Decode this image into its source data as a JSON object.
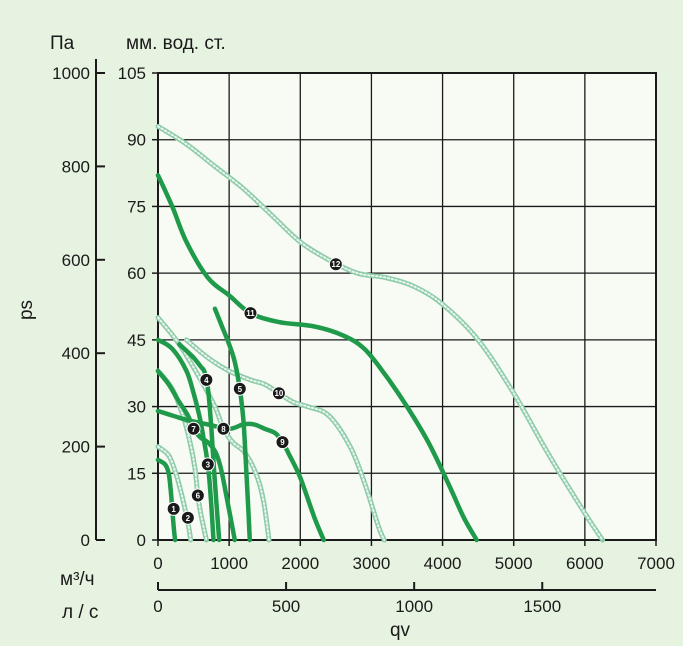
{
  "chart_data": {
    "type": "line",
    "units": {
      "pa": "Па",
      "mm": "мм. вод. ст.",
      "m3h": "м³/ч",
      "ls": "л / с"
    },
    "ylabel": "ps",
    "xlabel": "qv",
    "axes": {
      "pa": {
        "lim": [
          0,
          1000
        ],
        "ticks": [
          "0",
          "200",
          "400",
          "600",
          "800",
          "1000"
        ]
      },
      "mm": {
        "lim": [
          0,
          105
        ],
        "ticks": [
          "0",
          "15",
          "30",
          "45",
          "60",
          "75",
          "90",
          "105"
        ]
      },
      "m3h": {
        "lim": [
          0,
          7000
        ],
        "ticks": [
          "0",
          "1000",
          "2000",
          "3000",
          "4000",
          "5000",
          "6000",
          "7000"
        ]
      },
      "ls": {
        "lim": [
          0,
          1944
        ],
        "ticks": [
          "0",
          "500",
          "1000",
          "1500"
        ]
      }
    },
    "grid": true,
    "colors": {
      "solid": "#1e9a4a",
      "dotted": "#8ecba8",
      "badge": "#1a1a1a",
      "grid": "#1a1a1a"
    },
    "series": [
      {
        "name": "1",
        "style": "solid",
        "label_at": [
          220,
          7
        ],
        "x": [
          0,
          100,
          150,
          180,
          200,
          220,
          240
        ],
        "y": [
          18,
          17,
          15,
          11,
          7,
          3,
          0
        ]
      },
      {
        "name": "2",
        "style": "dotted",
        "label_at": [
          420,
          5
        ],
        "x": [
          0,
          150,
          250,
          320,
          380,
          420,
          460
        ],
        "y": [
          21,
          19,
          15,
          11,
          7,
          4,
          0
        ]
      },
      {
        "name": "3",
        "style": "solid",
        "label_at": [
          700,
          17
        ],
        "x": [
          0,
          200,
          400,
          500,
          580,
          640,
          700,
          740,
          780
        ],
        "y": [
          45,
          43,
          38,
          33,
          28,
          23,
          17,
          10,
          0
        ]
      },
      {
        "name": "4",
        "style": "solid",
        "label_at": [
          680,
          36
        ],
        "x": [
          300,
          500,
          600,
          650,
          680,
          710,
          750,
          800,
          860
        ],
        "y": [
          44,
          41,
          39,
          38,
          36,
          33,
          25,
          13,
          0
        ]
      },
      {
        "name": "5",
        "style": "solid",
        "label_at": [
          1150,
          34
        ],
        "x": [
          800,
          900,
          1000,
          1080,
          1150,
          1200,
          1230,
          1260,
          1290
        ],
        "y": [
          52,
          48,
          44,
          40,
          34,
          27,
          19,
          10,
          0
        ]
      },
      {
        "name": "6",
        "style": "dotted",
        "label_at": [
          560,
          10
        ],
        "x": [
          0,
          200,
          350,
          450,
          520,
          560,
          600,
          640,
          680
        ],
        "y": [
          38,
          34,
          28,
          22,
          16,
          10,
          6,
          3,
          0
        ]
      },
      {
        "name": "7",
        "style": "solid",
        "label_at": [
          500,
          25
        ],
        "x": [
          0,
          150,
          300,
          420,
          500,
          600,
          700,
          800,
          850,
          900,
          960,
          1020,
          1080
        ],
        "y": [
          38,
          35,
          31,
          28,
          25,
          23,
          22,
          20,
          18,
          15,
          10,
          5,
          0
        ]
      },
      {
        "name": "8",
        "style": "dotted",
        "label_at": [
          920,
          25
        ],
        "x": [
          0,
          300,
          600,
          800,
          920,
          1050,
          1200,
          1320,
          1420,
          1480,
          1520,
          1560
        ],
        "y": [
          50,
          44,
          36,
          30,
          25,
          22,
          20,
          17,
          13,
          9,
          5,
          0
        ]
      },
      {
        "name": "9",
        "style": "solid",
        "label_at": [
          1750,
          22
        ],
        "x": [
          0,
          200,
          400,
          700,
          1000,
          1200,
          1350,
          1500,
          1650,
          1750,
          1850,
          2000,
          2200,
          2330
        ],
        "y": [
          29,
          28,
          27,
          26,
          25,
          26,
          26,
          25,
          24,
          22,
          19,
          14,
          5,
          0
        ]
      },
      {
        "name": "10",
        "style": "dotted",
        "label_at": [
          1700,
          33
        ],
        "x": [
          400,
          700,
          1000,
          1300,
          1500,
          1700,
          1900,
          2100,
          2400,
          2700,
          2900,
          3100,
          3180
        ],
        "y": [
          45,
          41,
          38,
          36,
          35,
          33,
          31,
          30,
          28,
          21,
          13,
          3,
          0
        ]
      },
      {
        "name": "11",
        "style": "solid",
        "label_at": [
          1300,
          51
        ],
        "x": [
          0,
          200,
          400,
          700,
          1000,
          1300,
          1700,
          2200,
          2600,
          2900,
          3200,
          3500,
          3800,
          4100,
          4300,
          4480
        ],
        "y": [
          82,
          75,
          67,
          59,
          55,
          51,
          49,
          48,
          46,
          43,
          37,
          30,
          22,
          12,
          5,
          0
        ]
      },
      {
        "name": "12",
        "style": "dotted",
        "label_at": [
          2500,
          62
        ],
        "x": [
          0,
          400,
          800,
          1200,
          1600,
          2000,
          2400,
          2800,
          3200,
          3600,
          4000,
          4500,
          5000,
          5500,
          6000,
          6250
        ],
        "y": [
          93,
          89,
          84,
          79,
          73,
          67,
          63,
          60,
          59,
          57,
          53,
          45,
          33,
          19,
          6,
          0
        ]
      }
    ]
  }
}
